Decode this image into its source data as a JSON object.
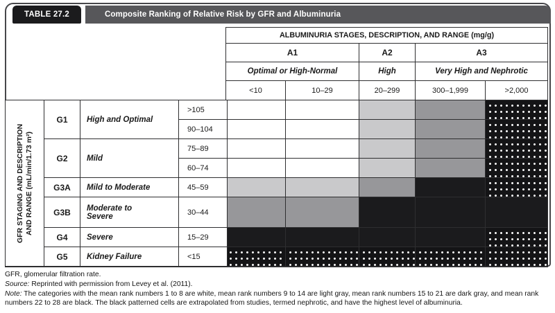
{
  "title": {
    "tag": "TABLE 27.2",
    "text": "Composite Ranking of Relative Risk by GFR and Albuminuria"
  },
  "albuminuria": {
    "header": "ALBUMINURIA STAGES, DESCRIPTION, AND RANGE (mg/g)",
    "stages": [
      {
        "code": "A1",
        "desc": "Optimal or High-Normal"
      },
      {
        "code": "A2",
        "desc": "High"
      },
      {
        "code": "A3",
        "desc": "Very High and Nephrotic"
      }
    ],
    "ranges": [
      "<10",
      "10–29",
      "20–299",
      "300–1,999",
      ">2,000"
    ]
  },
  "gfr": {
    "axis_label_line1": "GFR STAGING AND DESCRIPTION",
    "axis_label_line2": "AND RANGE (mL/min/1.73 m²)",
    "stages": [
      {
        "code": "G1",
        "desc": "High and Optimal",
        "ranges": [
          ">105",
          "90–104"
        ]
      },
      {
        "code": "G2",
        "desc": "Mild",
        "ranges": [
          "75–89",
          "60–74"
        ]
      },
      {
        "code": "G3A",
        "desc": "Mild to Moderate",
        "ranges": [
          "45–59"
        ]
      },
      {
        "code": "G3B",
        "desc": "Moderate to Severe",
        "ranges": [
          "30–44"
        ]
      },
      {
        "code": "G4",
        "desc": "Severe",
        "ranges": [
          "15–29"
        ]
      },
      {
        "code": "G5",
        "desc": "Kidney Failure",
        "ranges": [
          "<15"
        ]
      }
    ]
  },
  "risk_grid": {
    "type": "heatmap",
    "row_labels": [
      ">105",
      "90–104",
      "75–89",
      "60–74",
      "45–59",
      "30–44",
      "15–29",
      "<15"
    ],
    "col_labels": [
      "<10",
      "10–29",
      "20–299",
      "300–1,999",
      ">2,000"
    ],
    "shades": {
      "white": "#ffffff",
      "light": "#c9c9cb",
      "dark": "#97979a",
      "black": "#1b1b1d",
      "dotted": "black-with-white-dot-pattern"
    },
    "shade_meaning": {
      "white": "mean rank numbers 1 to 8",
      "light": "mean rank numbers 9 to 14",
      "dark": "mean rank numbers 15 to 21",
      "black": "mean rank numbers 22 to 28",
      "dotted": "extrapolated from studies, termed nephrotic"
    },
    "cells": [
      [
        "white",
        "white",
        "light",
        "dark",
        "dotted"
      ],
      [
        "white",
        "white",
        "light",
        "dark",
        "dotted"
      ],
      [
        "white",
        "white",
        "light",
        "dark",
        "dotted"
      ],
      [
        "white",
        "white",
        "light",
        "dark",
        "dotted"
      ],
      [
        "light",
        "light",
        "dark",
        "black",
        "dotted"
      ],
      [
        "dark",
        "dark",
        "black",
        "black",
        "black"
      ],
      [
        "black",
        "black",
        "black",
        "black",
        "dotted"
      ],
      [
        "dotted",
        "dotted",
        "dotted",
        "dotted",
        "dotted"
      ]
    ]
  },
  "footnotes": {
    "abbrev": "GFR, glomerular filtration rate.",
    "source_label": "Source:",
    "source_text": " Reprinted with permission from Levey et al. (2011).",
    "note_label": "Note:",
    "note_text": " The categories with the mean rank numbers 1 to 8 are white, mean rank numbers 9 to 14 are light gray, mean rank numbers 15 to 21 are dark gray, and mean rank numbers 22 to 28 are black. The black patterned cells are extrapolated from studies, termed nephrotic, and have the highest level of albuminuria."
  },
  "colors": {
    "title_tag_bg": "#1b1b1d",
    "title_bar_bg": "#57575a",
    "grid_line": "#2e2e30",
    "light_gray": "#c9c9cb",
    "dark_gray": "#97979a",
    "cell_black": "#1b1b1d"
  }
}
